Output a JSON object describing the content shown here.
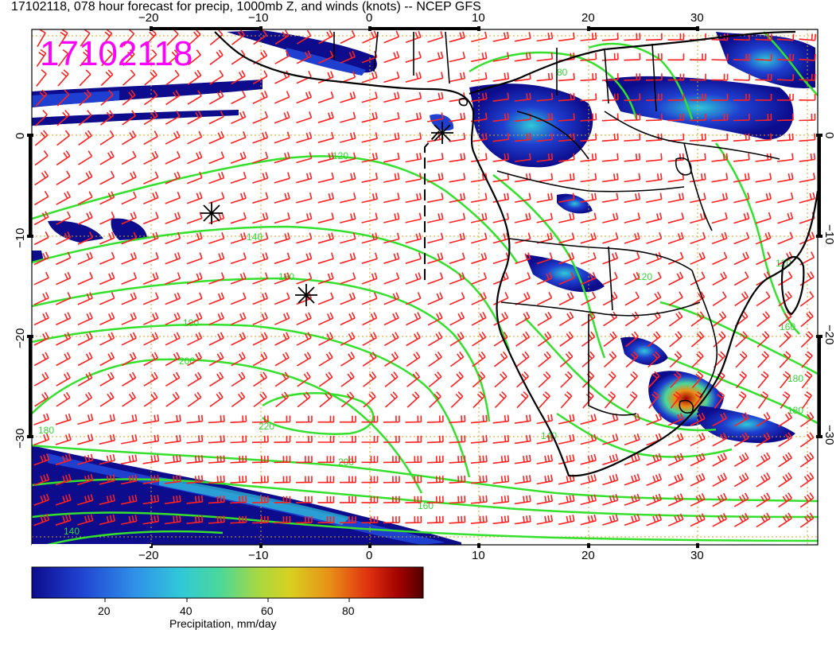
{
  "title": "17102118, 078 hour forecast for precip, 1000mb Z, and winds (knots) -- NCEP GFS",
  "stamp": "17102118",
  "x_ticks_bottom": [
    "−20",
    "−10",
    "0",
    "10",
    "20",
    "30"
  ],
  "x_ticks_top": [
    "−20",
    "−10",
    "0",
    "10",
    "20",
    "30"
  ],
  "y_ticks": [
    "0",
    "−10",
    "−20",
    "−30"
  ],
  "contour_labels": [
    "120",
    "140",
    "160",
    "180",
    "200",
    "220",
    "180",
    "200",
    "180",
    "160",
    "140",
    "120",
    "160",
    "180",
    "140",
    "120",
    "80"
  ],
  "colorbar": {
    "ticks": [
      "20",
      "40",
      "60",
      "80"
    ],
    "label": "Precipitation, mm/day",
    "colors": [
      "#0c0c8c",
      "#1f3fd0",
      "#2f8fe8",
      "#30c8d8",
      "#4ad89a",
      "#a8d840",
      "#d8d020",
      "#e89018",
      "#e03010",
      "#a00000",
      "#500000"
    ]
  },
  "colors": {
    "wind": "#ff2020",
    "contour": "#34e02c",
    "grid": "#d8a020",
    "land": "#000000",
    "stamp": "#ff00ff"
  }
}
